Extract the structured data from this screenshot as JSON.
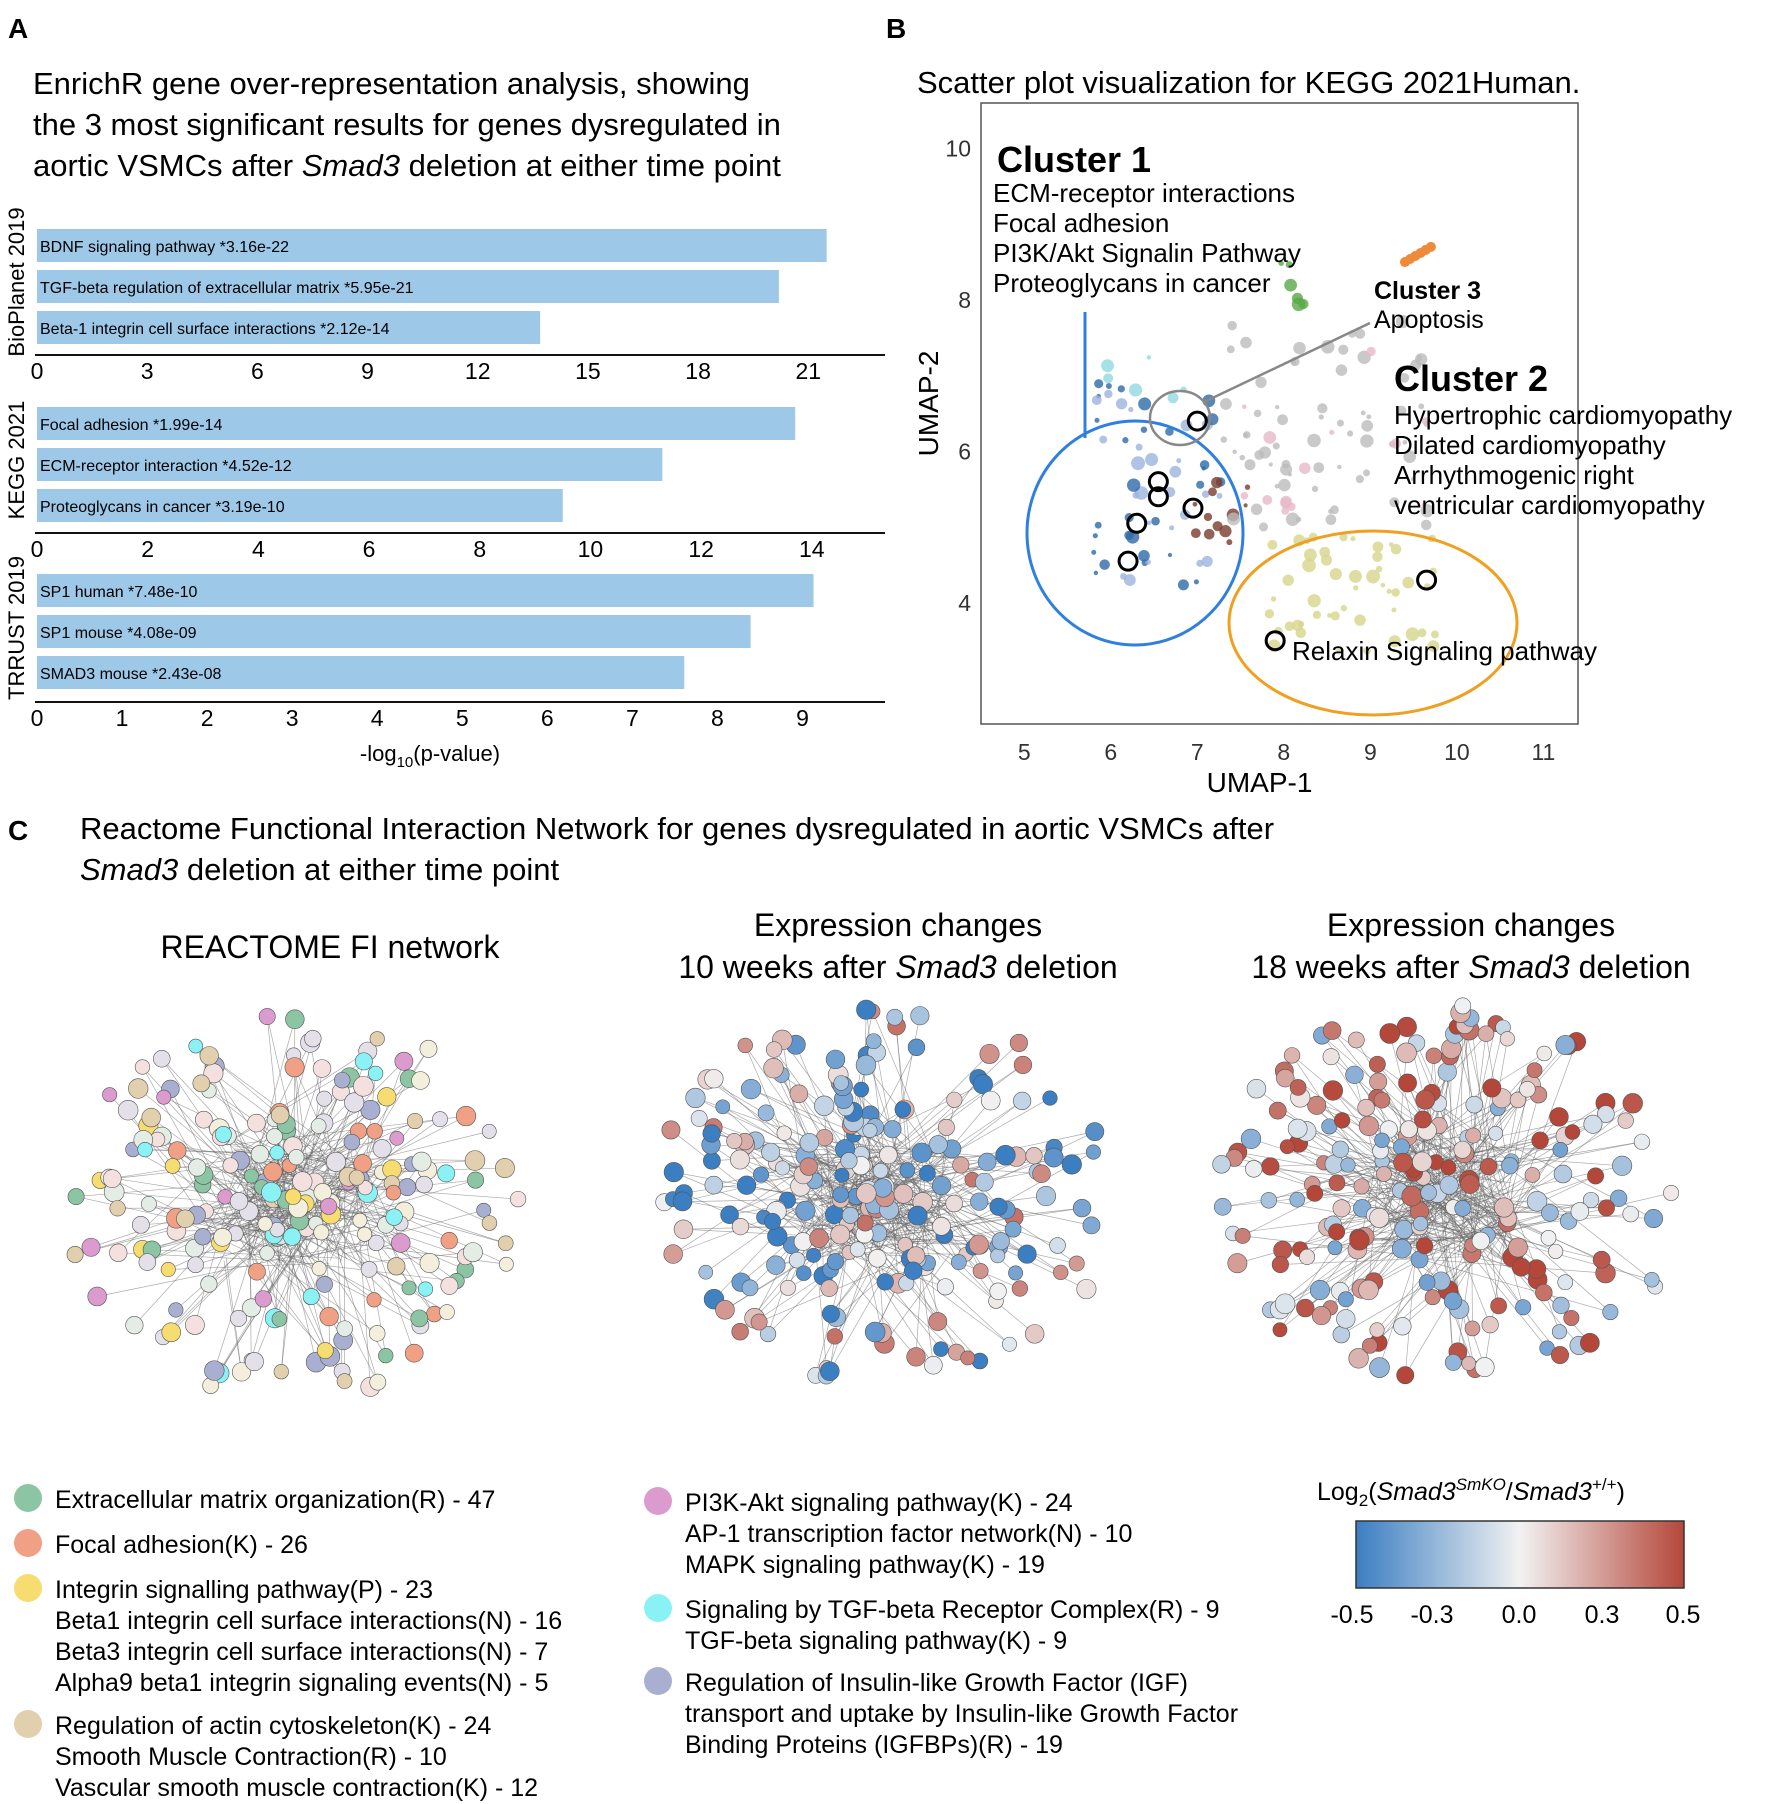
{
  "panel_a": {
    "letter": "A",
    "title_lines": [
      "EnrichR gene over-representation analysis, showing",
      "the 3 most significant results for genes dysregulated in"
    ],
    "title_line3_pre": "aortic VSMCs after ",
    "title_line3_italic": "Smad3",
    "title_line3_post": " deletion at either time point",
    "xlabel_pre": "-log",
    "xlabel_sub": "10",
    "xlabel_post": "(p-value)"
  },
  "panel_b": {
    "letter": "B",
    "title": "Scatter plot visualization for KEGG 2021Human."
  },
  "panel_c": {
    "letter": "C",
    "title_line1": "Reactome Functional Interaction Network for genes dysregulated in aortic VSMCs after",
    "title_line2_italic": "Smad3",
    "title_line2_post": " deletion at either time point",
    "net1_title": "REACTOME FI network",
    "net2_title_line1": "Expression changes",
    "net2_title_line2_pre": "10 weeks after ",
    "net2_title_line2_italic": "Smad3",
    "net2_title_line2_post": " deletion",
    "net3_title_line1": "Expression changes",
    "net3_title_line2_pre": "18 weeks after ",
    "net3_title_line2_italic": "Smad3",
    "net3_title_line2_post": " deletion"
  },
  "legend": {
    "groups": [
      {
        "color": "#8cc5a3",
        "lines": [
          "Extracellular matrix organization(R) - 47"
        ]
      },
      {
        "color": "#f0a084",
        "lines": [
          "Focal adhesion(K) - 26"
        ]
      },
      {
        "color": "#f7dc6f",
        "lines": [
          "Integrin signalling pathway(P) - 23",
          "Beta1 integrin cell surface interactions(N) - 16",
          "Beta3 integrin cell surface interactions(N) - 7",
          "Alpha9 beta1 integrin signaling events(N) - 5"
        ]
      },
      {
        "color": "#e2cfad",
        "lines": [
          "Regulation of actin cytoskeleton(K) - 24",
          "Smooth Muscle Contraction(R) - 10",
          "Vascular smooth muscle contraction(K) - 12"
        ]
      },
      {
        "color": "#dc9bcf",
        "lines": [
          "PI3K-Akt signaling pathway(K) - 24",
          "AP-1 transcription factor network(N) - 10",
          "MAPK signaling pathway(K) - 19"
        ]
      },
      {
        "color": "#8af2f5",
        "lines": [
          "Signaling by TGF-beta Receptor Complex(R) - 9",
          "TGF-beta signaling pathway(K) - 9"
        ]
      },
      {
        "color": "#a9afd0",
        "lines": [
          "Regulation of Insulin-like Growth Factor (IGF)",
          "transport and uptake by Insulin-like Growth Factor",
          "Binding Proteins (IGFBPs)(R) - 19"
        ]
      }
    ]
  },
  "colorbar": {
    "title_pre": "Log",
    "title_sub": "2",
    "title_paren_open": "(",
    "title_a": "Smad3",
    "title_a_sup": "SmKO",
    "title_slash": "/",
    "title_b": "Smad3",
    "title_b_sup": "+/+",
    "title_paren_close": ")",
    "ticks": [
      "-0.5",
      "-0.3",
      "0.0",
      "0.3",
      "0.5"
    ],
    "low_color": "#3b7ec2",
    "mid_color": "#f2f2f2",
    "high_color": "#b5473a"
  },
  "chart_data": [
    {
      "type": "bar",
      "orientation": "horizontal",
      "group_label": "BioPlanet 2019",
      "categories": [
        "BDNF signaling pathway",
        "TGF-beta regulation of extracellular matrix",
        "Beta-1 integrin cell surface interactions"
      ],
      "pvalue_labels": [
        "*3.16e-22",
        "*5.95e-21",
        "*2.12e-14"
      ],
      "values": [
        21.5,
        20.2,
        13.7
      ],
      "xlim": [
        0,
        22
      ],
      "xticks": [
        "0",
        "3",
        "6",
        "9",
        "12",
        "15",
        "18",
        "21"
      ],
      "bar_color": "#9dc8e8"
    },
    {
      "type": "bar",
      "orientation": "horizontal",
      "group_label": "KEGG 2021",
      "categories": [
        "Focal adhesion",
        "ECM-receptor interaction",
        "Proteoglycans in cancer"
      ],
      "pvalue_labels": [
        "*1.99e-14",
        "*4.52e-12",
        "*3.19e-10"
      ],
      "values": [
        13.7,
        11.3,
        9.5
      ],
      "xlim": [
        0,
        14.6
      ],
      "xticks": [
        "0",
        "2",
        "4",
        "6",
        "8",
        "10",
        "12",
        "14"
      ],
      "bar_color": "#9dc8e8"
    },
    {
      "type": "bar",
      "orientation": "horizontal",
      "group_label": "TRRUST 2019",
      "categories": [
        "SP1 human",
        "SP1 mouse",
        "SMAD3 mouse"
      ],
      "pvalue_labels": [
        "*7.48e-10",
        "*4.08e-09",
        "*2.43e-08"
      ],
      "values": [
        9.13,
        8.39,
        7.61
      ],
      "xlim": [
        0,
        9.5
      ],
      "xticks": [
        "0",
        "1",
        "2",
        "3",
        "4",
        "5",
        "6",
        "7",
        "8",
        "9"
      ],
      "bar_color": "#9dc8e8"
    },
    {
      "type": "scatter",
      "title": "Scatter plot visualization for KEGG 2021Human.",
      "xlabel": "UMAP-1",
      "ylabel": "UMAP-2",
      "xlim": [
        4.5,
        11.4
      ],
      "ylim": [
        2.4,
        10.6
      ],
      "xticks": [
        "5",
        "6",
        "7",
        "8",
        "9",
        "10",
        "11"
      ],
      "yticks": [
        "4",
        "6",
        "8",
        "10"
      ],
      "clusters": [
        {
          "name": "Cluster 1",
          "terms": [
            "ECM-receptor interactions",
            "Focal adhesion",
            "PI3K/Akt Signalin Pathway",
            "Proteoglycans in cancer"
          ],
          "ring_color": "#2f7fe0"
        },
        {
          "name": "Cluster 2",
          "terms": [
            "Hypertrophic cardiomyopathy",
            "Dilated cardiomyopathy",
            "Arrhythmogenic right",
            "ventricular cardiomyopathy"
          ],
          "ring_color": "#888888"
        },
        {
          "name": "Cluster 3",
          "terms": [
            "Apoptosis"
          ],
          "ring_color": "#888888"
        },
        {
          "name": "Relaxin",
          "terms": [
            "Relaxin Signaling pathway"
          ],
          "ring_color": "#f0a020"
        }
      ],
      "highlighted_points": [
        {
          "x": 7.0,
          "y": 6.4
        },
        {
          "x": 6.55,
          "y": 5.6
        },
        {
          "x": 6.55,
          "y": 5.4
        },
        {
          "x": 6.3,
          "y": 5.05
        },
        {
          "x": 6.95,
          "y": 5.25
        },
        {
          "x": 6.2,
          "y": 4.55
        },
        {
          "x": 9.65,
          "y": 4.3
        },
        {
          "x": 7.9,
          "y": 3.5
        }
      ]
    }
  ]
}
